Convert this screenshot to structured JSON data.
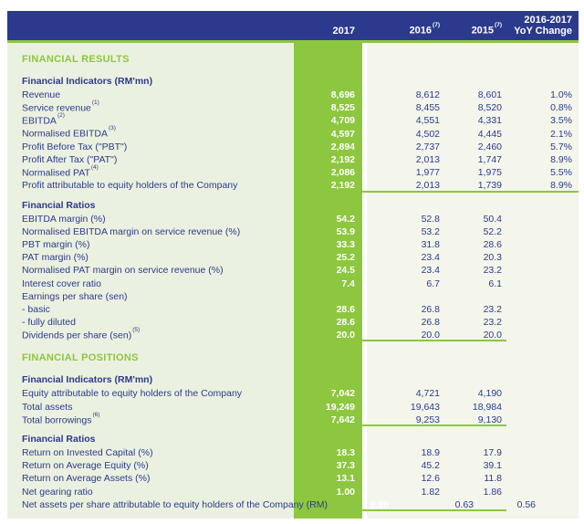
{
  "colors": {
    "accent_green": "#8dc63f",
    "navy": "#2b3a8c",
    "page_background_left": "#ebf1e0",
    "values_panel_background": "#f4f6ec",
    "highlight_column_text": "#ffffff"
  },
  "header": {
    "col_2017": "2017",
    "col_2016": "2016",
    "col_2016_sup": "(7)",
    "col_2015": "2015",
    "col_2015_sup": "(7)",
    "col_yoy_line1": "2016-2017",
    "col_yoy_line2": "YoY Change"
  },
  "table": {
    "rows": [
      {
        "type": "section",
        "label": "FINANCIAL RESULTS"
      },
      {
        "type": "subhead",
        "label": "Financial Indicators (RM'mn)"
      },
      {
        "type": "data",
        "label": "Revenue",
        "values": [
          "8,696",
          "8,612",
          "8,601",
          "1.0%"
        ]
      },
      {
        "type": "data",
        "label": "Service revenue",
        "sup": "(1)",
        "values": [
          "8,525",
          "8,455",
          "8,520",
          "0.8%"
        ]
      },
      {
        "type": "data",
        "label": "EBITDA",
        "sup": "(2)",
        "values": [
          "4,709",
          "4,551",
          "4,331",
          "3.5%"
        ]
      },
      {
        "type": "data",
        "label": "Normalised EBITDA",
        "sup": "(3)",
        "values": [
          "4,597",
          "4,502",
          "4,445",
          "2.1%"
        ]
      },
      {
        "type": "data",
        "label": "Profit Before Tax (\"PBT\")",
        "values": [
          "2,894",
          "2,737",
          "2,460",
          "5.7%"
        ]
      },
      {
        "type": "data",
        "label": "Profit After Tax (\"PAT\")",
        "values": [
          "2,192",
          "2,013",
          "1,747",
          "8.9%"
        ]
      },
      {
        "type": "data",
        "label": "Normalised PAT",
        "sup": "(4)",
        "values": [
          "2,086",
          "1,977",
          "1,975",
          "5.5%"
        ]
      },
      {
        "type": "data",
        "label": "Profit attributable to equity holders of the Company",
        "values": [
          "2,192",
          "2,013",
          "1,739",
          "8.9%"
        ],
        "underline": "full"
      },
      {
        "type": "subhead",
        "label": "Financial Ratios"
      },
      {
        "type": "data",
        "label": "EBITDA margin (%)",
        "values": [
          "54.2",
          "52.8",
          "50.4",
          ""
        ]
      },
      {
        "type": "data",
        "label": "Normalised EBITDA margin on service revenue (%)",
        "values": [
          "53.9",
          "53.2",
          "52.2",
          ""
        ]
      },
      {
        "type": "data",
        "label": "PBT margin (%)",
        "values": [
          "33.3",
          "31.8",
          "28.6",
          ""
        ]
      },
      {
        "type": "data",
        "label": "PAT margin (%)",
        "values": [
          "25.2",
          "23.4",
          "20.3",
          ""
        ]
      },
      {
        "type": "data",
        "label": "Normalised PAT margin on service revenue (%)",
        "values": [
          "24.5",
          "23.4",
          "23.2",
          ""
        ]
      },
      {
        "type": "data",
        "label": "Interest cover ratio",
        "values": [
          "7.4",
          "6.7",
          "6.1",
          ""
        ]
      },
      {
        "type": "data",
        "label": "Earnings per share (sen)",
        "values": [
          "",
          "",
          "",
          ""
        ]
      },
      {
        "type": "data",
        "label": "- basic",
        "values": [
          "28.6",
          "26.8",
          "23.2",
          ""
        ]
      },
      {
        "type": "data",
        "label": "- fully diluted",
        "values": [
          "28.6",
          "26.8",
          "23.2",
          ""
        ]
      },
      {
        "type": "data",
        "label": "Dividends per share (sen)",
        "sup": "(5)",
        "values": [
          "20.0",
          "20.0",
          "20.0",
          ""
        ],
        "underline": "partial"
      },
      {
        "type": "section",
        "label": "FINANCIAL POSITIONS"
      },
      {
        "type": "subhead",
        "label": "Financial Indicators (RM'mn)"
      },
      {
        "type": "data",
        "label": "Equity attributable to equity holders of the Company",
        "values": [
          "7,042",
          "4,721",
          "4,190",
          ""
        ]
      },
      {
        "type": "data",
        "label": "Total assets",
        "values": [
          "19,249",
          "19,643",
          "18,984",
          ""
        ]
      },
      {
        "type": "data",
        "label": "Total borrowings",
        "sup": "(6)",
        "values": [
          "7,642",
          "9,253",
          "9,130",
          ""
        ],
        "underline": "partial"
      },
      {
        "type": "subhead",
        "label": "Financial Ratios"
      },
      {
        "type": "data",
        "label": "Return on Invested Capital (%)",
        "values": [
          "18.3",
          "18.9",
          "17.9",
          ""
        ]
      },
      {
        "type": "data",
        "label": "Return on Average Equity (%)",
        "values": [
          "37.3",
          "45.2",
          "39.1",
          ""
        ]
      },
      {
        "type": "data",
        "label": "Return on Average Assets (%)",
        "values": [
          "13.1",
          "12.6",
          "11.8",
          ""
        ]
      },
      {
        "type": "data",
        "label": "Net gearing ratio",
        "values": [
          "1.00",
          "1.82",
          "1.86",
          ""
        ]
      },
      {
        "type": "data",
        "label": "Net assets per share attributable to equity holders of the Company (RM)",
        "values": [
          "0.90",
          "0.63",
          "0.56",
          ""
        ],
        "underline": "partial"
      }
    ]
  }
}
